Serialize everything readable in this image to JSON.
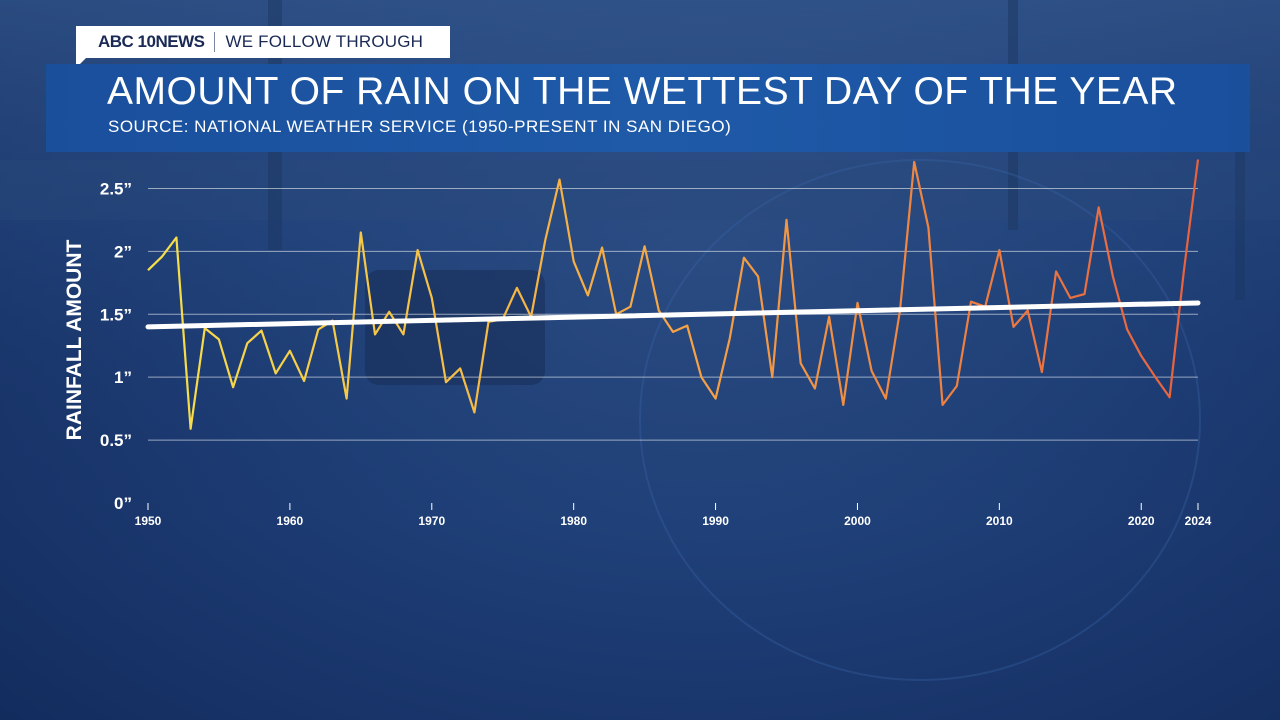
{
  "brand": {
    "logo": "ABC 10NEWS",
    "tagline": "WE FOLLOW THROUGH"
  },
  "colors": {
    "line_start": "#f7e04a",
    "line_mid": "#f5a545",
    "line_end": "#e8613e",
    "trend": "#ffffff",
    "title_band": "#1e5aa8"
  },
  "chart_data": {
    "type": "line",
    "title": "AMOUNT OF RAIN ON THE WETTEST DAY OF THE YEAR",
    "subtitle": "SOURCE: NATIONAL WEATHER SERVICE (1950-PRESENT IN SAN DIEGO)",
    "xlabel": "",
    "ylabel": "RAINFALL AMOUNT",
    "xlim": [
      1950,
      2024
    ],
    "ylim": [
      0,
      2.75
    ],
    "x_ticks": [
      1950,
      1960,
      1970,
      1980,
      1990,
      2000,
      2010,
      2020,
      2024
    ],
    "y_ticks": [
      {
        "value": 0,
        "label": "0”"
      },
      {
        "value": 0.5,
        "label": "0.5”"
      },
      {
        "value": 1,
        "label": "1”"
      },
      {
        "value": 1.5,
        "label": "1.5”"
      },
      {
        "value": 2,
        "label": "2”"
      },
      {
        "value": 2.5,
        "label": "2.5”"
      }
    ],
    "series": [
      {
        "name": "Rainfall",
        "x": [
          1950,
          1951,
          1952,
          1953,
          1954,
          1955,
          1956,
          1957,
          1958,
          1959,
          1960,
          1961,
          1962,
          1963,
          1964,
          1965,
          1966,
          1967,
          1968,
          1969,
          1970,
          1971,
          1972,
          1973,
          1974,
          1975,
          1976,
          1977,
          1978,
          1979,
          1980,
          1981,
          1982,
          1983,
          1984,
          1985,
          1986,
          1987,
          1988,
          1989,
          1990,
          1991,
          1992,
          1993,
          1994,
          1995,
          1996,
          1997,
          1998,
          1999,
          2000,
          2001,
          2002,
          2003,
          2004,
          2005,
          2006,
          2007,
          2008,
          2009,
          2010,
          2011,
          2012,
          2013,
          2014,
          2015,
          2016,
          2017,
          2018,
          2019,
          2020,
          2021,
          2022,
          2023,
          2024
        ],
        "values": [
          1.85,
          1.96,
          2.11,
          0.59,
          1.39,
          1.3,
          0.92,
          1.27,
          1.37,
          1.03,
          1.21,
          0.97,
          1.38,
          1.45,
          0.83,
          2.15,
          1.34,
          1.52,
          1.34,
          2.01,
          1.63,
          0.96,
          1.07,
          0.72,
          1.44,
          1.46,
          1.71,
          1.48,
          2.09,
          2.57,
          1.92,
          1.65,
          2.03,
          1.5,
          1.56,
          2.04,
          1.53,
          1.36,
          1.41,
          1.0,
          0.83,
          1.31,
          1.95,
          1.8,
          1.0,
          2.25,
          1.11,
          0.91,
          1.48,
          0.78,
          1.59,
          1.05,
          0.83,
          1.53,
          2.71,
          2.19,
          0.78,
          0.93,
          1.6,
          1.56,
          2.01,
          1.4,
          1.53,
          1.04,
          1.84,
          1.63,
          1.66,
          2.35,
          1.8,
          1.38,
          1.17,
          1.0,
          0.84,
          1.84,
          2.73
        ]
      },
      {
        "name": "Trend",
        "x": [
          1950,
          2024
        ],
        "values": [
          1.4,
          1.59
        ]
      }
    ]
  }
}
